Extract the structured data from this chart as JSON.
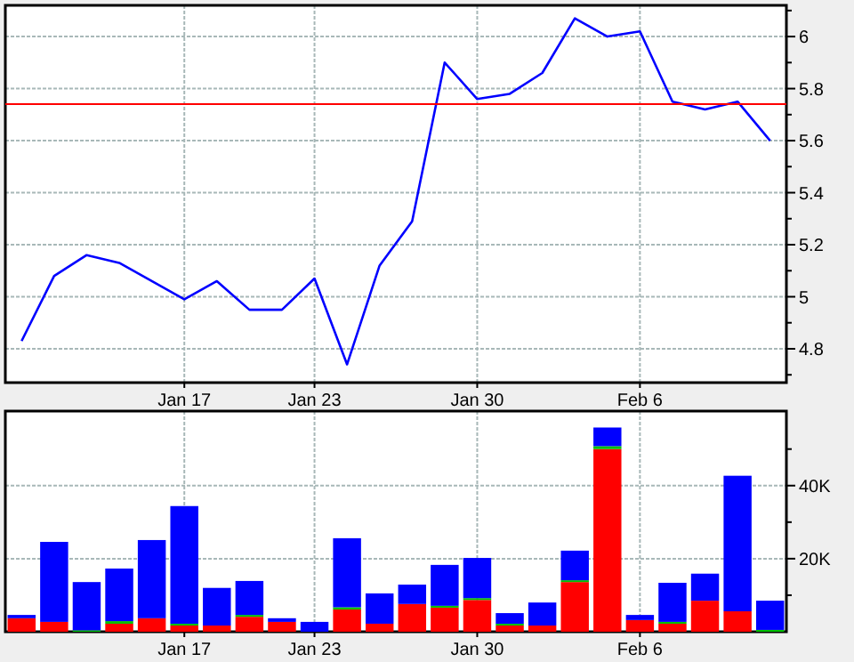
{
  "chart_data": [
    {
      "type": "line",
      "categories": [
        null,
        null,
        null,
        null,
        null,
        "Jan 17",
        null,
        null,
        null,
        "Jan 23",
        null,
        null,
        null,
        null,
        "Jan 30",
        null,
        null,
        null,
        null,
        "Feb 6",
        null,
        null,
        null,
        null
      ],
      "series": [
        {
          "color": "#0000ff",
          "values": [
            4.83,
            5.08,
            5.16,
            5.13,
            5.06,
            4.99,
            5.06,
            4.95,
            4.95,
            5.07,
            4.74,
            5.12,
            5.29,
            5.9,
            5.76,
            5.78,
            5.86,
            6.07,
            6.0,
            6.02,
            5.75,
            5.72,
            5.75,
            5.6
          ]
        }
      ],
      "ylim": [
        4.67,
        6.12
      ],
      "yticks": [
        {
          "value": 4.7,
          "label": null
        },
        {
          "value": 4.8,
          "label": "4.8"
        },
        {
          "value": 4.9,
          "label": null
        },
        {
          "value": 5,
          "label": "5"
        },
        {
          "value": 5.1,
          "label": null
        },
        {
          "value": 5.2,
          "label": "5.2"
        },
        {
          "value": 5.3,
          "label": null
        },
        {
          "value": 5.4,
          "label": "5.4"
        },
        {
          "value": 5.5,
          "label": null
        },
        {
          "value": 5.6,
          "label": "5.6"
        },
        {
          "value": 5.7,
          "label": null
        },
        {
          "value": 5.8,
          "label": "5.8"
        },
        {
          "value": 5.9,
          "label": null
        },
        {
          "value": 6,
          "label": "6"
        },
        {
          "value": 6.1,
          "label": null
        }
      ],
      "ref_lines": [
        {
          "axis": "y",
          "value": 5.74,
          "color": "#ff0000"
        }
      ],
      "grid": true,
      "marker": "none",
      "line_style": "solid"
    },
    {
      "type": "bar",
      "stacked": true,
      "categories": [
        null,
        null,
        null,
        null,
        null,
        "Jan 17",
        null,
        null,
        null,
        "Jan 23",
        null,
        null,
        null,
        null,
        "Jan 30",
        null,
        null,
        null,
        null,
        "Feb 6",
        null,
        null,
        null,
        null
      ],
      "series": [
        {
          "color": "#ff0000",
          "values": [
            3.7,
            2.7,
            null,
            2.2,
            3.7,
            1.7,
            1.7,
            4.1,
            2.7,
            0,
            6.1,
            2.2,
            7.6,
            6.6,
            8.7,
            1.7,
            1.7,
            13.6,
            50.0,
            3.2,
            2.2,
            8.5,
            5.6,
            0
          ]
        },
        {
          "color": "#00c000",
          "values": [
            0,
            0,
            0.4,
            0.7,
            0,
            0.5,
            0,
            0.5,
            0,
            0,
            0.6,
            0,
            0,
            0.5,
            0.5,
            0.5,
            0,
            0.5,
            0.8,
            0,
            0.5,
            0,
            0,
            0.5
          ]
        },
        {
          "color": "#0000ff",
          "values": [
            0.9,
            21.9,
            13.2,
            14.4,
            21.4,
            32.2,
            10.3,
            9.3,
            1.0,
            2.7,
            18.9,
            8.3,
            5.3,
            11.2,
            11.0,
            2.9,
            6.3,
            8.1,
            5.1,
            1.4,
            10.7,
            7.4,
            37.1,
            8.0
          ]
        }
      ],
      "ylim": [
        0,
        60.4
      ],
      "yticks": [
        {
          "value": 10,
          "label": null
        },
        {
          "value": 20,
          "label": "20K"
        },
        {
          "value": 30,
          "label": null
        },
        {
          "value": 40,
          "label": "40K"
        },
        {
          "value": 50,
          "label": null
        }
      ],
      "grid": true
    }
  ]
}
